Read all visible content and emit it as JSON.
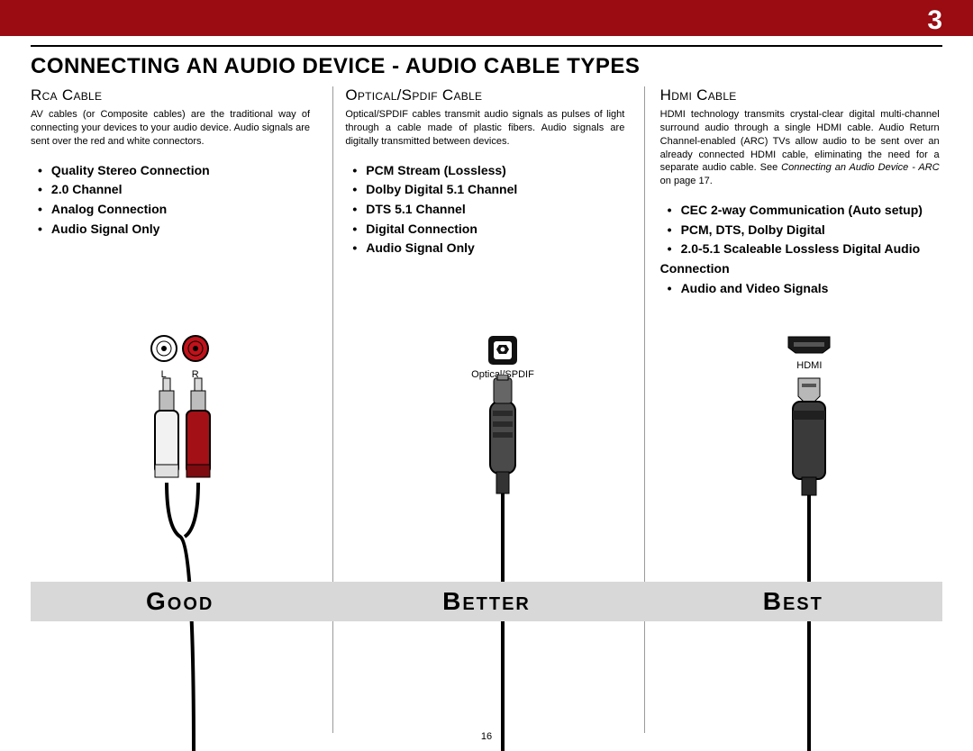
{
  "page_number": "3",
  "main_title": "CONNECTING AN AUDIO DEVICE - AUDIO CABLE TYPES",
  "footer_page": "16",
  "colors": {
    "banner": "#9a0b12",
    "rating_bg": "#d8d8d8",
    "divider": "#9a9a9a"
  },
  "columns": [
    {
      "title": "Rca Cable",
      "desc": "AV cables (or Composite cables) are the traditional way of connecting your devices to your audio device. Audio signals are sent over the red and white connectors.",
      "features": [
        "Quality Stereo Connection",
        "2.0 Channel",
        "Analog Connection",
        "Audio Signal Only"
      ],
      "port_label_l": "L",
      "port_label_r": "R",
      "rating": "Good"
    },
    {
      "title": "Optical/Spdif Cable",
      "desc": "Optical/SPDIF cables transmit audio signals as pulses of light through a cable made of plastic fibers. Audio signals are digitally transmitted between devices.",
      "features": [
        "PCM Stream (Lossless)",
        "Dolby Digital 5.1 Channel",
        "DTS 5.1 Channel",
        "Digital Connection",
        "Audio Signal Only"
      ],
      "port_label": "Optical/SPDIF",
      "rating": "Better"
    },
    {
      "title": "Hdmi Cable",
      "desc": "HDMI technology transmits crystal-clear digital multi-channel surround audio through a single HDMI cable. Audio Return Channel-enabled (ARC) TVs allow audio to be sent over an already connected HDMI cable, eliminating the need for a separate audio cable. See <em>Connecting an Audio Device - ARC</em> on page 17.",
      "features": [
        "CEC 2-way Communication (Auto setup)",
        "PCM, DTS, Dolby Digital",
        "2.0-5.1 Scaleable Lossless Digital Audio Connection",
        "Audio and Video Signals"
      ],
      "port_label": "HDMI",
      "rating": "Best"
    }
  ]
}
